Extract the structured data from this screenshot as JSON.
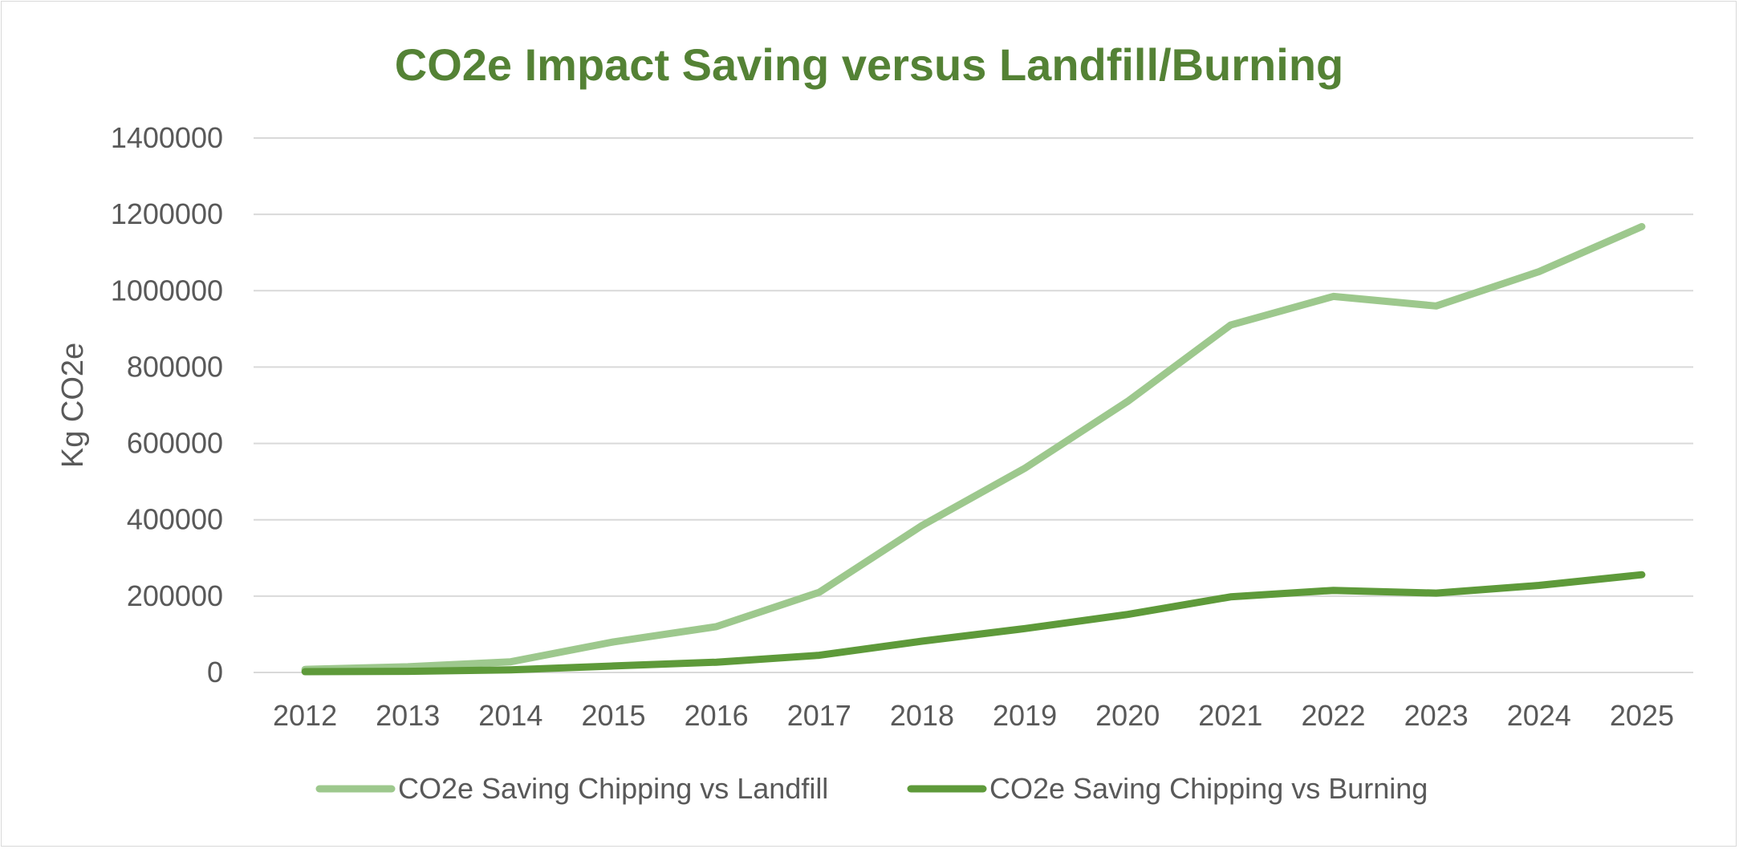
{
  "chart_data": {
    "type": "line",
    "title": "CO2e Impact Saving versus Landfill/Burning",
    "xlabel": "",
    "ylabel": "Kg CO2e",
    "categories": [
      "2012",
      "2013",
      "2014",
      "2015",
      "2016",
      "2017",
      "2018",
      "2019",
      "2020",
      "2021",
      "2022",
      "2023",
      "2024",
      "2025"
    ],
    "ylim": [
      0,
      1400000
    ],
    "yticks": [
      0,
      200000,
      400000,
      600000,
      800000,
      1000000,
      1200000,
      1400000
    ],
    "ytick_labels": [
      "0",
      "200000",
      "400000",
      "600000",
      "800000",
      "1000000",
      "1200000",
      "1400000"
    ],
    "grid": true,
    "legend_position": "bottom",
    "series": [
      {
        "name": "CO2e Saving Chipping vs Landfill",
        "color": "#9dc88d",
        "values": [
          8000,
          15000,
          28000,
          80000,
          120000,
          210000,
          385000,
          535000,
          710000,
          910000,
          985000,
          960000,
          1050000,
          1168000
        ]
      },
      {
        "name": "CO2e Saving Chipping vs Burning",
        "color": "#5e9a3a",
        "values": [
          2000,
          3000,
          7000,
          17000,
          27000,
          45000,
          82000,
          115000,
          152000,
          198000,
          215000,
          208000,
          228000,
          256000
        ]
      }
    ],
    "title_color": "#548235",
    "grid_color": "#d9d9d9"
  }
}
